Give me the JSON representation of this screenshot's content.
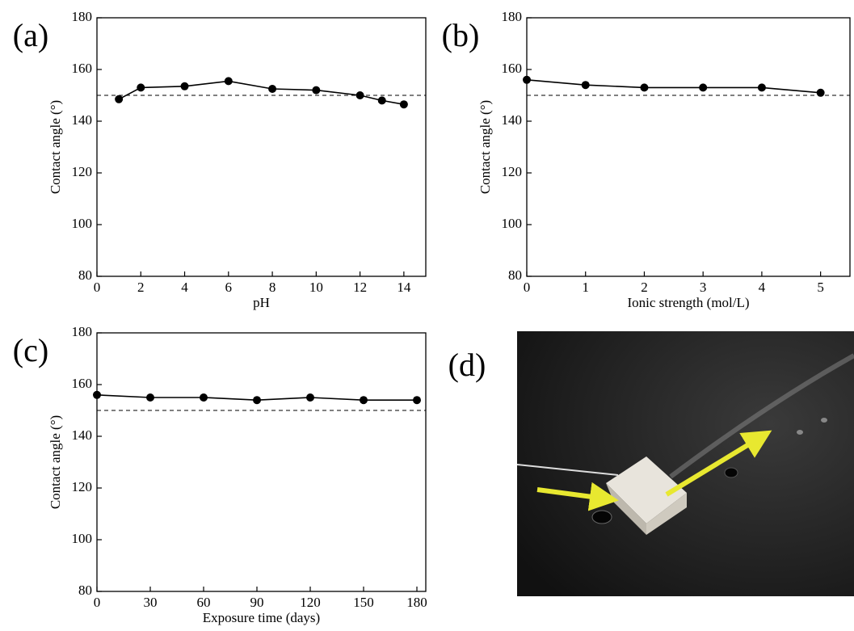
{
  "chart_data": [
    {
      "type": "line",
      "panel_label": "(a)",
      "xlabel": "pH",
      "ylabel": "Contact angle (°)",
      "x": [
        1,
        2,
        4,
        6,
        8,
        10,
        12,
        13,
        14
      ],
      "series": [
        {
          "color": "#000000",
          "values": [
            148.5,
            153,
            153.5,
            155.5,
            152.5,
            152,
            150,
            148,
            146.5
          ]
        }
      ],
      "xlim": [
        0,
        15
      ],
      "xticks": [
        0,
        2,
        4,
        6,
        8,
        10,
        12,
        14
      ],
      "ylim": [
        80,
        180
      ],
      "yticks": [
        80,
        100,
        120,
        140,
        160,
        180
      ],
      "reference_line": 150
    },
    {
      "type": "line",
      "panel_label": "(b)",
      "xlabel": "Ionic strength (mol/L)",
      "ylabel": "Contact angle (°)",
      "x": [
        0,
        1,
        2,
        3,
        4,
        5
      ],
      "series": [
        {
          "color": "#000000",
          "values": [
            156,
            154,
            153,
            153,
            153,
            151
          ]
        }
      ],
      "xlim": [
        0,
        5.5
      ],
      "xticks": [
        0,
        1,
        2,
        3,
        4,
        5
      ],
      "ylim": [
        80,
        180
      ],
      "yticks": [
        80,
        100,
        120,
        140,
        160,
        180
      ],
      "reference_line": 150
    },
    {
      "type": "line",
      "panel_label": "(c)",
      "xlabel": "Exposure time (days)",
      "ylabel": "Contact angle (°)",
      "x": [
        0,
        30,
        60,
        90,
        120,
        150,
        180
      ],
      "series": [
        {
          "color": "#000000",
          "values": [
            156,
            155,
            155,
            154,
            155,
            154,
            154
          ]
        }
      ],
      "xlim": [
        0,
        185
      ],
      "xticks": [
        0,
        30,
        60,
        90,
        120,
        150,
        180
      ],
      "ylim": [
        80,
        180
      ],
      "yticks": [
        80,
        100,
        120,
        140,
        160,
        180
      ],
      "reference_line": 150
    }
  ],
  "photo": {
    "label": "(d)"
  }
}
